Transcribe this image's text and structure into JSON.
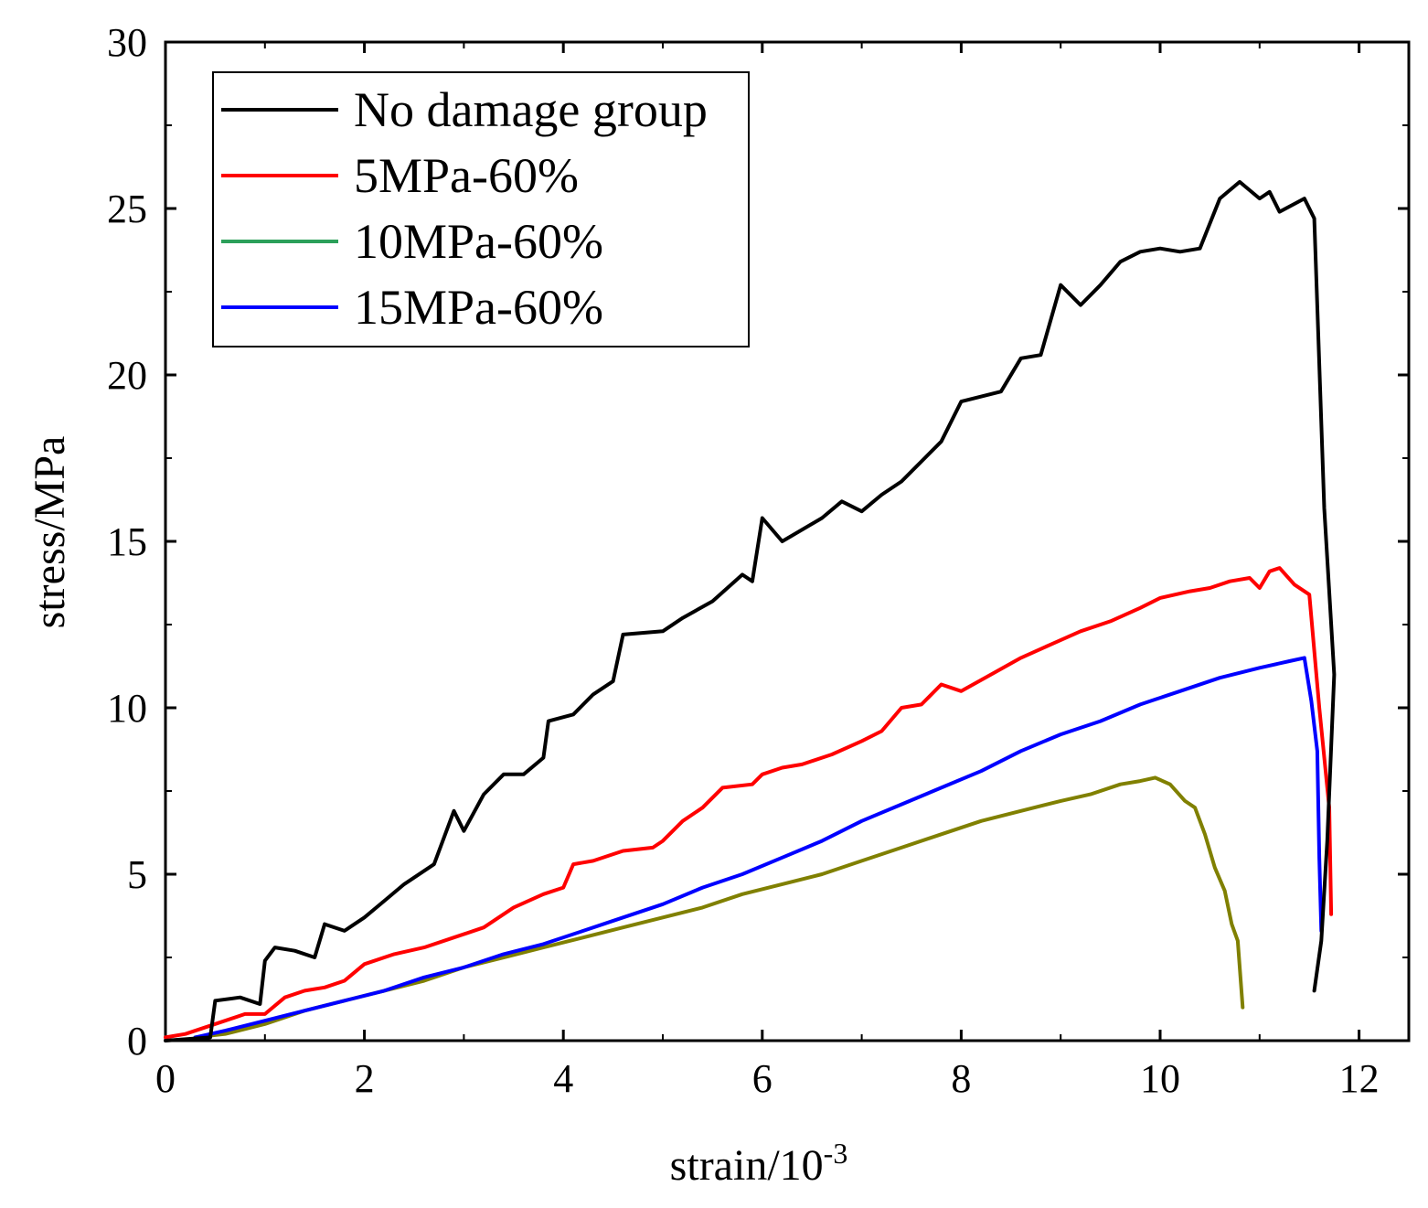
{
  "chart_data": {
    "type": "line",
    "title": "",
    "xlabel": "strain/10",
    "xlabel_superscript": "-3",
    "ylabel": "stress/MPa",
    "xlim": [
      0,
      12.5
    ],
    "ylim": [
      0,
      30
    ],
    "xticks": [
      "0",
      "2",
      "4",
      "6",
      "8",
      "10",
      "12"
    ],
    "yticks": [
      "0",
      "5",
      "10",
      "15",
      "20",
      "25",
      "30"
    ],
    "grid": false,
    "legend_position": "top-left",
    "series": [
      {
        "name": "No damage group",
        "color": "#000000",
        "x": [
          0,
          0.45,
          0.5,
          0.75,
          0.95,
          1.0,
          1.1,
          1.3,
          1.5,
          1.6,
          1.8,
          2.0,
          2.2,
          2.4,
          2.7,
          2.9,
          3.0,
          3.2,
          3.4,
          3.6,
          3.8,
          3.85,
          4.1,
          4.3,
          4.5,
          4.6,
          5.0,
          5.2,
          5.5,
          5.8,
          5.9,
          6.0,
          6.2,
          6.6,
          6.8,
          7.0,
          7.2,
          7.4,
          7.6,
          7.8,
          8.0,
          8.4,
          8.6,
          8.8,
          9.0,
          9.2,
          9.4,
          9.6,
          9.8,
          10.0,
          10.2,
          10.4,
          10.6,
          10.8,
          11.0,
          11.1,
          11.2,
          11.45,
          11.55,
          11.65,
          11.75,
          11.68,
          11.62,
          11.55
        ],
        "y": [
          0,
          0.1,
          1.2,
          1.3,
          1.1,
          2.4,
          2.8,
          2.7,
          2.5,
          3.5,
          3.3,
          3.7,
          4.2,
          4.7,
          5.3,
          6.9,
          6.3,
          7.4,
          8.0,
          8.0,
          8.5,
          9.6,
          9.8,
          10.4,
          10.8,
          12.2,
          12.3,
          12.7,
          13.2,
          14.0,
          13.8,
          15.7,
          15.0,
          15.7,
          16.2,
          15.9,
          16.4,
          16.8,
          17.4,
          18.0,
          19.2,
          19.5,
          20.5,
          20.6,
          22.7,
          22.1,
          22.7,
          23.4,
          23.7,
          23.8,
          23.7,
          23.8,
          25.3,
          25.8,
          25.3,
          25.5,
          24.9,
          25.3,
          24.7,
          16.0,
          11.0,
          6.0,
          3.0,
          1.5
        ]
      },
      {
        "name": "5MPa-60%",
        "color": "#ff0000",
        "x": [
          0,
          0.2,
          0.5,
          0.8,
          1.0,
          1.2,
          1.4,
          1.6,
          1.8,
          2.0,
          2.3,
          2.6,
          2.9,
          3.2,
          3.5,
          3.8,
          4.0,
          4.1,
          4.3,
          4.6,
          4.9,
          5.0,
          5.2,
          5.4,
          5.6,
          5.9,
          6.0,
          6.2,
          6.4,
          6.7,
          7.0,
          7.2,
          7.4,
          7.6,
          7.8,
          8.0,
          8.3,
          8.6,
          8.9,
          9.2,
          9.5,
          9.8,
          10.0,
          10.3,
          10.5,
          10.7,
          10.9,
          11.0,
          11.1,
          11.2,
          11.35,
          11.5,
          11.6,
          11.7,
          11.72
        ],
        "y": [
          0.1,
          0.2,
          0.5,
          0.8,
          0.8,
          1.3,
          1.5,
          1.6,
          1.8,
          2.3,
          2.6,
          2.8,
          3.1,
          3.4,
          4.0,
          4.4,
          4.6,
          5.3,
          5.4,
          5.7,
          5.8,
          6.0,
          6.6,
          7.0,
          7.6,
          7.7,
          8.0,
          8.2,
          8.3,
          8.6,
          9.0,
          9.3,
          10.0,
          10.1,
          10.7,
          10.5,
          11.0,
          11.5,
          11.9,
          12.3,
          12.6,
          13.0,
          13.3,
          13.5,
          13.6,
          13.8,
          13.9,
          13.6,
          14.1,
          14.2,
          13.7,
          13.4,
          10.0,
          7.0,
          3.8
        ]
      },
      {
        "name": "10MPa-60%",
        "color": "#808000",
        "x": [
          0.3,
          0.6,
          1.0,
          1.4,
          1.8,
          2.2,
          2.6,
          3.0,
          3.4,
          3.8,
          4.2,
          4.6,
          5.0,
          5.4,
          5.8,
          6.2,
          6.6,
          7.0,
          7.4,
          7.8,
          8.2,
          8.6,
          9.0,
          9.3,
          9.6,
          9.8,
          9.95,
          10.1,
          10.25,
          10.35,
          10.45,
          10.55,
          10.65,
          10.72,
          10.78,
          10.83
        ],
        "y": [
          0.1,
          0.2,
          0.5,
          0.9,
          1.2,
          1.5,
          1.8,
          2.2,
          2.5,
          2.8,
          3.1,
          3.4,
          3.7,
          4.0,
          4.4,
          4.7,
          5.0,
          5.4,
          5.8,
          6.2,
          6.6,
          6.9,
          7.2,
          7.4,
          7.7,
          7.8,
          7.9,
          7.7,
          7.2,
          7.0,
          6.2,
          5.2,
          4.5,
          3.5,
          3.0,
          1.0
        ]
      },
      {
        "name": "15MPa-60%",
        "color": "#0000ff",
        "x": [
          0.3,
          0.6,
          1.0,
          1.4,
          1.8,
          2.2,
          2.6,
          3.0,
          3.4,
          3.8,
          4.2,
          4.6,
          5.0,
          5.4,
          5.8,
          6.2,
          6.6,
          7.0,
          7.4,
          7.8,
          8.2,
          8.6,
          9.0,
          9.4,
          9.8,
          10.2,
          10.6,
          11.0,
          11.3,
          11.45,
          11.52,
          11.58,
          11.6,
          11.62
        ],
        "y": [
          0.1,
          0.3,
          0.6,
          0.9,
          1.2,
          1.5,
          1.9,
          2.2,
          2.6,
          2.9,
          3.3,
          3.7,
          4.1,
          4.6,
          5.0,
          5.5,
          6.0,
          6.6,
          7.1,
          7.6,
          8.1,
          8.7,
          9.2,
          9.6,
          10.1,
          10.5,
          10.9,
          11.2,
          11.4,
          11.5,
          10.2,
          8.7,
          5.5,
          3.3
        ]
      }
    ]
  }
}
